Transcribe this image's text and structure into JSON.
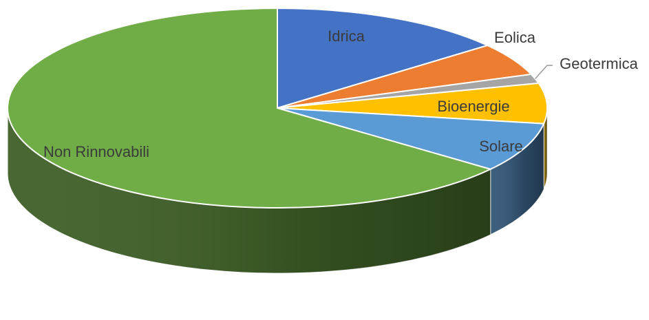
{
  "chart_data": {
    "type": "pie",
    "style": "3d-pie",
    "title": "",
    "legend": "none",
    "slices": [
      {
        "label": "Idrica",
        "value": 14.2,
        "color": "#4472C4"
      },
      {
        "label": "Eolica",
        "value": 5.3,
        "color": "#ED7D31"
      },
      {
        "label": "Geotermica",
        "value": 1.5,
        "color": "#A5A5A5"
      },
      {
        "label": "Bioenergie",
        "value": 6.5,
        "color": "#FFC000"
      },
      {
        "label": "Solare",
        "value": 8.0,
        "color": "#5B9BD5"
      },
      {
        "label": "Non Rinnovabili",
        "value": 64.5,
        "color": "#70AD47"
      }
    ]
  }
}
